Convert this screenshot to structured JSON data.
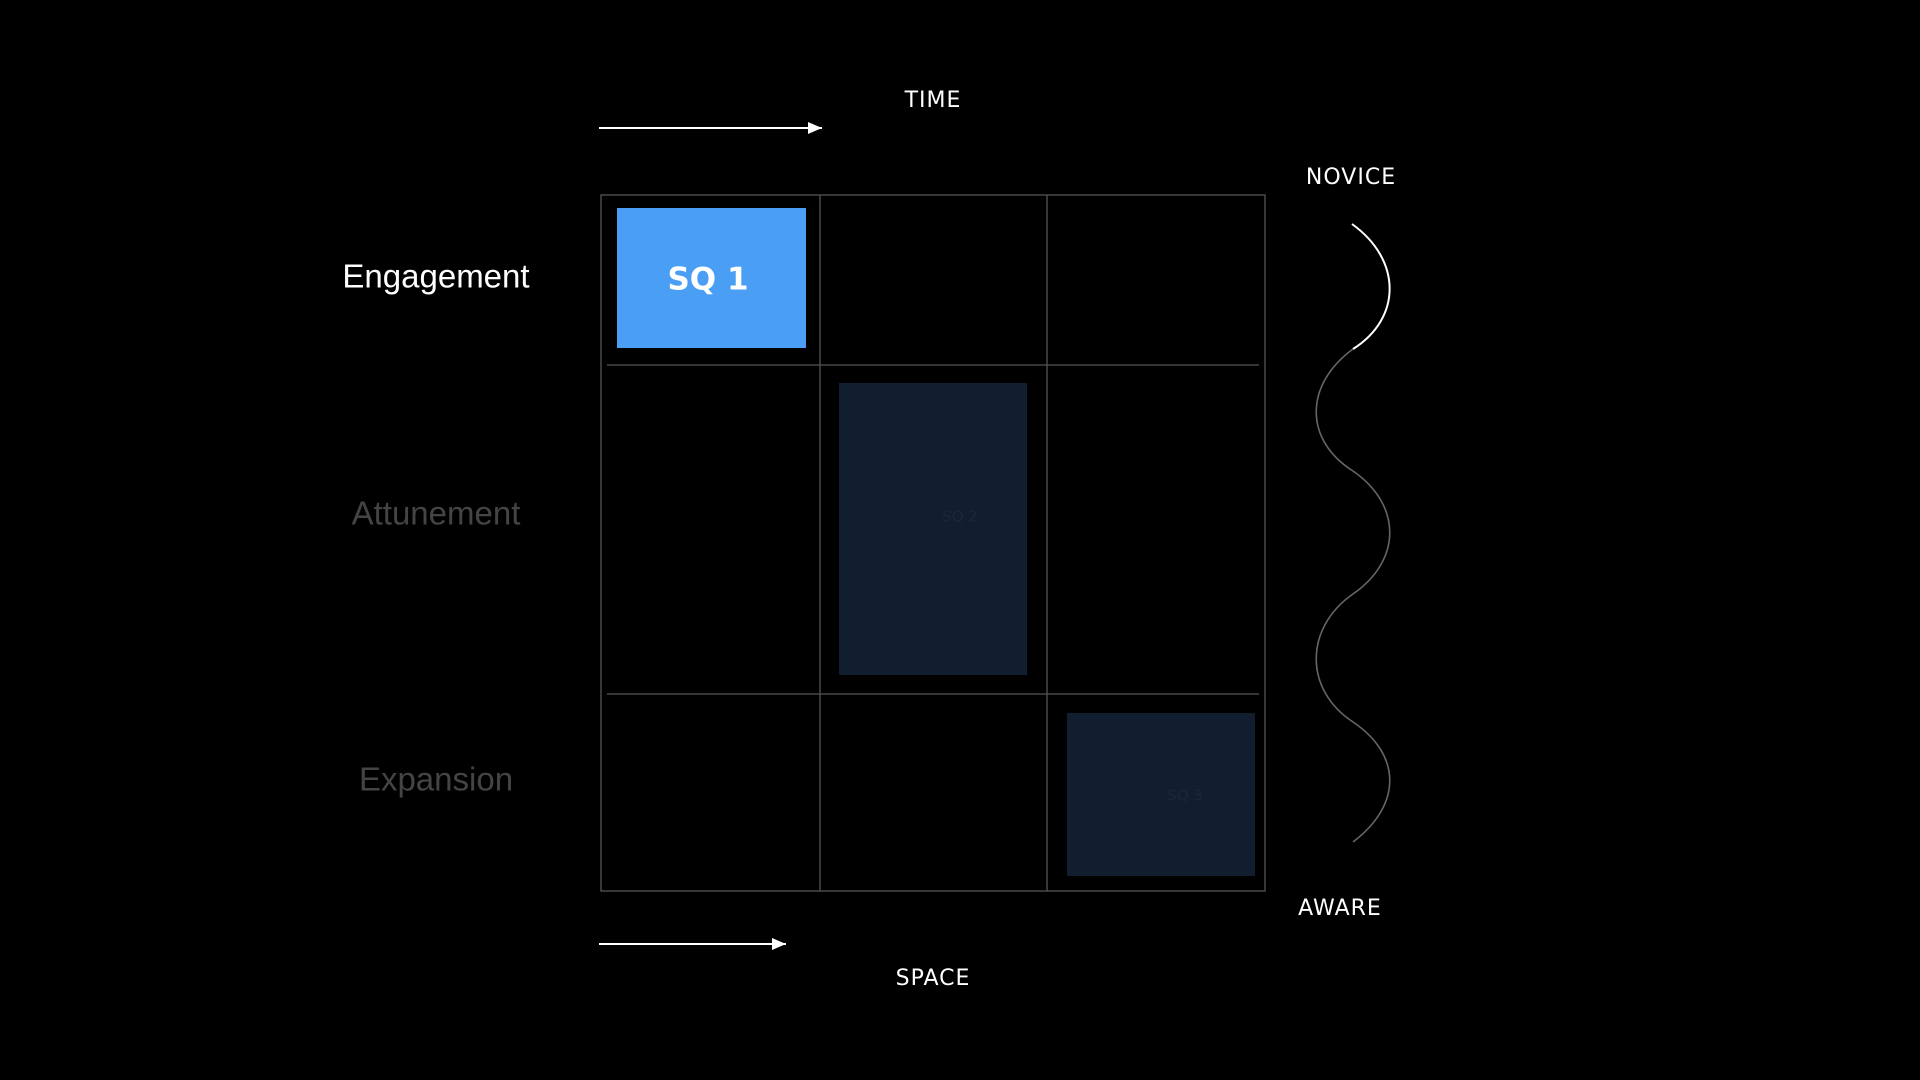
{
  "axes": {
    "top": "TIME",
    "bottom": "SPACE",
    "right_top": "NOVICE",
    "right_bottom": "AWARE"
  },
  "rows": [
    "Engagement",
    "Attunement",
    "Expansion"
  ],
  "squares": [
    "SQ 1",
    "SQ 2",
    "SQ 3"
  ]
}
